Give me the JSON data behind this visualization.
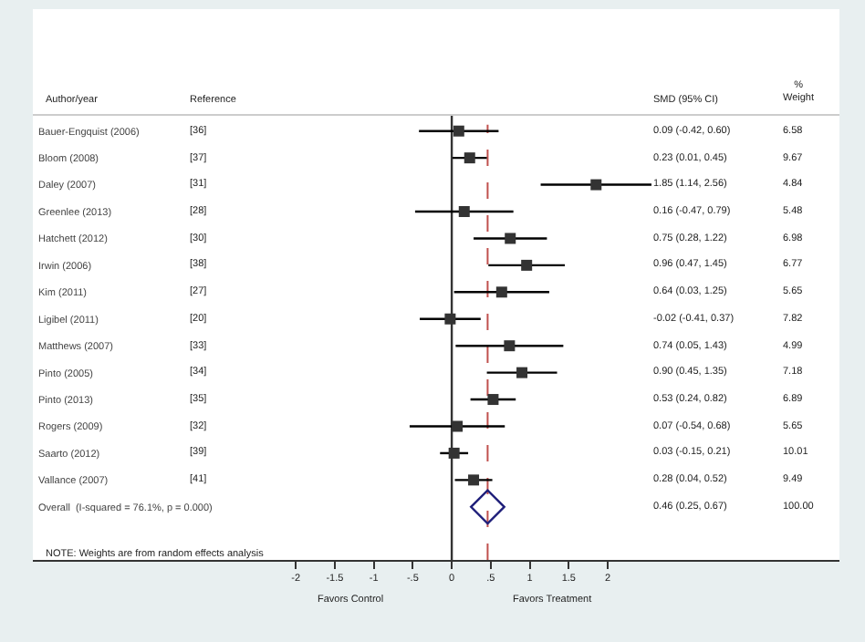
{
  "chart_data": {
    "type": "scatter",
    "orientation": "horizontal",
    "categories": [
      "Bauer-Engquist (2006)",
      "Bloom (2008)",
      "Daley (2007)",
      "Greenlee (2013)",
      "Hatchett (2012)",
      "Irwin (2006)",
      "Kim (2011)",
      "Ligibel (2011)",
      "Matthews (2007)",
      "Pinto (2005)",
      "Pinto (2013)",
      "Rogers (2009)",
      "Saarto (2012)",
      "Vallance (2007)",
      "Overall  (I-squared = 76.1%, p = 0.000)"
    ],
    "series": [
      {
        "color": "#333333",
        "marker": "square",
        "values": [
          0.09,
          0.23,
          1.85,
          0.16,
          0.75,
          0.96,
          0.64,
          -0.02,
          0.74,
          0.9,
          0.53,
          0.07,
          0.03,
          0.28,
          null
        ],
        "errors": [
          [
            -0.42,
            0.6
          ],
          [
            0.01,
            0.45
          ],
          [
            1.14,
            2.56
          ],
          [
            -0.47,
            0.79
          ],
          [
            0.28,
            1.22
          ],
          [
            0.47,
            1.45
          ],
          [
            0.03,
            1.25
          ],
          [
            -0.41,
            0.37
          ],
          [
            0.05,
            1.43
          ],
          [
            0.45,
            1.35
          ],
          [
            0.24,
            0.82
          ],
          [
            -0.54,
            0.68
          ],
          [
            -0.15,
            0.21
          ],
          [
            0.04,
            0.52
          ],
          null
        ]
      },
      {
        "color": "#1f1f7a",
        "marker": "diamond",
        "values": [
          null,
          null,
          null,
          null,
          null,
          null,
          null,
          null,
          null,
          null,
          null,
          null,
          null,
          null,
          0.46
        ]
      }
    ],
    "xlim": [
      -5.37,
      4.97
    ],
    "xticks": [
      -2,
      -1.5,
      -1,
      {
        "value": -0.5,
        "label": "-.5"
      },
      0,
      {
        "value": 0.5,
        "label": ".5"
      },
      1,
      1.5,
      2
    ],
    "ref_lines": [
      {
        "axis": "x",
        "value": 0,
        "color": "#333333",
        "line_style": "solid"
      },
      {
        "axis": "x",
        "value": 0.46,
        "color": "#c0504d",
        "line_style": "dashed"
      }
    ],
    "annotations": [
      "Author/year",
      "Reference",
      "SMD (95% CI)",
      "%\nWeight",
      "[36]",
      "[37]",
      "[31]",
      "[28]",
      "[30]",
      "[38]",
      "[27]",
      "[20]",
      "[33]",
      "[34]",
      "[35]",
      "[32]",
      "[39]",
      "[41]",
      "0.09 (-0.42, 0.60)",
      "0.23 (0.01, 0.45)",
      "1.85 (1.14, 2.56)",
      "0.16 (-0.47, 0.79)",
      "0.75 (0.28, 1.22)",
      "0.96 (0.47, 1.45)",
      "0.64 (0.03, 1.25)",
      "-0.02 (-0.41, 0.37)",
      "0.74 (0.05, 1.43)",
      "0.90 (0.45, 1.35)",
      "0.53 (0.24, 0.82)",
      "0.07 (-0.54, 0.68)",
      "0.03 (-0.15, 0.21)",
      "0.28 (0.04, 0.52)",
      "0.46 (0.25, 0.67)",
      "6.58",
      "9.67",
      "4.84",
      "5.48",
      "6.98",
      "6.77",
      "5.65",
      "7.82",
      "4.99",
      "7.18",
      "6.89",
      "5.65",
      "10.01",
      "9.49",
      "100.00",
      "NOTE: Weights are from random effects analysis",
      "Favors Control",
      "Favors Treatment"
    ],
    "grid": false
  }
}
